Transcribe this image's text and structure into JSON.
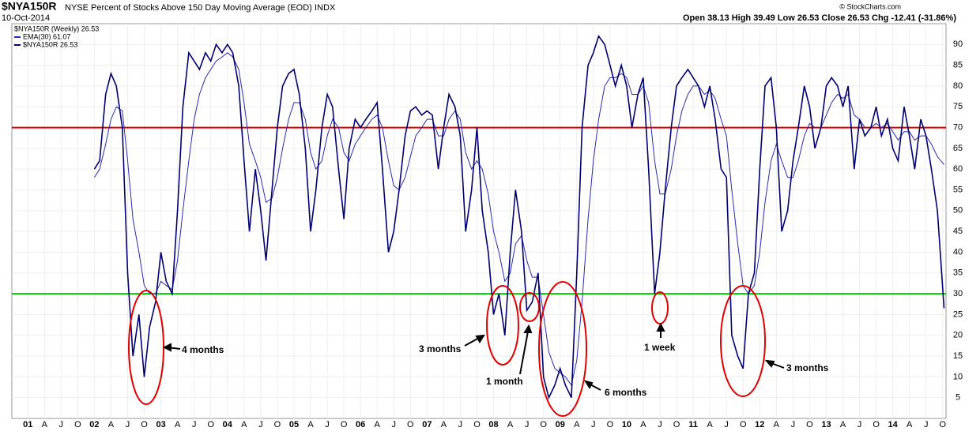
{
  "header": {
    "symbol": "$NYA150R",
    "title": "NYSE Percent of Stocks Above 150 Day Moving Average (EOD)",
    "exchange": "INDX",
    "date": "10-Oct-2014",
    "quote": "Open 38.13  High 39.49  Low 26.53  Close 26.53  Chg -12.41 (-31.86%)",
    "credit": "© StockCharts.com",
    "legend_title": "$NYA150R (Weekly) 26.53"
  },
  "chart_data": {
    "type": "line",
    "x": [
      2002.0,
      2002.08,
      2002.17,
      2002.25,
      2002.33,
      2002.42,
      2002.5,
      2002.58,
      2002.67,
      2002.75,
      2002.83,
      2002.92,
      2003.0,
      2003.08,
      2003.17,
      2003.25,
      2003.33,
      2003.42,
      2003.5,
      2003.58,
      2003.67,
      2003.75,
      2003.83,
      2003.92,
      2004.0,
      2004.08,
      2004.17,
      2004.25,
      2004.33,
      2004.42,
      2004.5,
      2004.58,
      2004.67,
      2004.75,
      2004.83,
      2004.92,
      2005.0,
      2005.08,
      2005.17,
      2005.25,
      2005.33,
      2005.42,
      2005.5,
      2005.58,
      2005.67,
      2005.75,
      2005.83,
      2005.92,
      2006.0,
      2006.08,
      2006.17,
      2006.25,
      2006.33,
      2006.42,
      2006.5,
      2006.58,
      2006.67,
      2006.75,
      2006.83,
      2006.92,
      2007.0,
      2007.08,
      2007.17,
      2007.25,
      2007.33,
      2007.42,
      2007.5,
      2007.58,
      2007.67,
      2007.75,
      2007.83,
      2007.92,
      2008.0,
      2008.08,
      2008.17,
      2008.25,
      2008.33,
      2008.42,
      2008.5,
      2008.58,
      2008.67,
      2008.75,
      2008.83,
      2008.92,
      2009.0,
      2009.08,
      2009.17,
      2009.25,
      2009.33,
      2009.42,
      2009.5,
      2009.58,
      2009.67,
      2009.75,
      2009.83,
      2009.92,
      2010.0,
      2010.08,
      2010.17,
      2010.25,
      2010.33,
      2010.42,
      2010.5,
      2010.58,
      2010.67,
      2010.75,
      2010.83,
      2010.92,
      2011.0,
      2011.08,
      2011.17,
      2011.25,
      2011.33,
      2011.42,
      2011.5,
      2011.58,
      2011.67,
      2011.75,
      2011.83,
      2011.92,
      2012.0,
      2012.08,
      2012.17,
      2012.25,
      2012.33,
      2012.42,
      2012.5,
      2012.58,
      2012.67,
      2012.75,
      2012.83,
      2012.92,
      2013.0,
      2013.08,
      2013.17,
      2013.25,
      2013.33,
      2013.42,
      2013.5,
      2013.58,
      2013.67,
      2013.75,
      2013.83,
      2013.92,
      2014.0,
      2014.08,
      2014.17,
      2014.25,
      2014.33,
      2014.42,
      2014.5,
      2014.58,
      2014.67,
      2014.77
    ],
    "series": [
      {
        "name": "EMA(30) 61.07",
        "color": "#2a2ab0",
        "width": 1,
        "values": [
          58,
          60,
          66,
          72,
          75,
          74,
          62,
          48,
          40,
          32,
          30,
          30,
          33,
          32,
          31,
          38,
          50,
          62,
          72,
          78,
          82,
          84,
          86,
          87,
          88,
          87,
          84,
          76,
          66,
          62,
          58,
          52,
          53,
          58,
          65,
          72,
          76,
          76,
          72,
          64,
          60,
          62,
          68,
          72,
          70,
          64,
          62,
          66,
          68,
          70,
          72,
          73,
          70,
          62,
          56,
          55,
          58,
          63,
          68,
          70,
          72,
          72,
          68,
          68,
          72,
          74,
          72,
          64,
          60,
          62,
          60,
          54,
          45,
          40,
          33,
          35,
          42,
          44,
          38,
          34,
          34,
          25,
          16,
          12,
          11,
          10,
          8,
          14,
          28,
          48,
          62,
          72,
          80,
          82,
          82,
          83,
          82,
          78,
          78,
          80,
          76,
          62,
          54,
          54,
          60,
          68,
          74,
          78,
          80,
          80,
          78,
          79,
          77,
          72,
          68,
          55,
          42,
          32,
          30,
          32,
          40,
          52,
          62,
          66,
          62,
          58,
          58,
          62,
          68,
          71,
          70,
          70,
          73,
          76,
          78,
          77,
          78,
          73,
          72,
          70,
          70,
          71,
          70,
          71,
          69,
          67,
          69,
          69,
          67,
          68,
          68,
          66,
          63,
          61.07
        ]
      },
      {
        "name": "$NYA150R 26.53",
        "color": "#000070",
        "width": 1.6,
        "values": [
          60,
          62,
          78,
          83,
          80,
          70,
          35,
          15,
          25,
          10,
          22,
          28,
          40,
          33,
          30,
          50,
          75,
          88,
          86,
          84,
          88,
          86,
          90,
          88,
          90,
          88,
          80,
          62,
          45,
          60,
          50,
          38,
          55,
          70,
          80,
          83,
          84,
          78,
          65,
          45,
          55,
          70,
          78,
          75,
          60,
          48,
          65,
          72,
          70,
          72,
          74,
          76,
          60,
          40,
          45,
          55,
          68,
          74,
          75,
          73,
          74,
          73,
          60,
          70,
          78,
          75,
          68,
          45,
          55,
          70,
          50,
          40,
          25,
          30,
          20,
          40,
          55,
          45,
          26,
          28,
          35,
          10,
          5,
          8,
          12,
          8,
          5,
          35,
          70,
          85,
          88,
          92,
          90,
          85,
          80,
          85,
          80,
          70,
          78,
          82,
          60,
          30,
          40,
          55,
          70,
          80,
          82,
          84,
          82,
          80,
          75,
          80,
          72,
          60,
          58,
          20,
          15,
          12,
          30,
          35,
          60,
          80,
          82,
          70,
          45,
          50,
          62,
          70,
          80,
          75,
          65,
          70,
          80,
          82,
          80,
          75,
          80,
          60,
          72,
          68,
          70,
          75,
          68,
          72,
          65,
          62,
          75,
          68,
          60,
          72,
          68,
          60,
          50,
          26.53
        ]
      }
    ],
    "reference_lines": [
      {
        "value": 70,
        "color": "#e00000"
      },
      {
        "value": 30,
        "color": "#00cc00"
      }
    ],
    "annotations": [
      "4 months",
      "3 months",
      "1 month",
      "6 months",
      "1 week",
      "3 months"
    ],
    "annotation_color": "#e00000",
    "xlim": [
      2000.76,
      2014.8
    ],
    "ylim": [
      0,
      95
    ],
    "yticks": [
      5,
      10,
      15,
      20,
      25,
      30,
      35,
      40,
      45,
      50,
      55,
      60,
      65,
      70,
      75,
      80,
      85,
      90
    ],
    "xticks": [
      {
        "value": 2001,
        "label": "01"
      },
      {
        "value": 2001.25,
        "label": "A"
      },
      {
        "value": 2001.5,
        "label": "J"
      },
      {
        "value": 2001.75,
        "label": "O"
      },
      {
        "value": 2002,
        "label": "02"
      },
      {
        "value": 2002.25,
        "label": "A"
      },
      {
        "value": 2002.5,
        "label": "J"
      },
      {
        "value": 2002.75,
        "label": "O"
      },
      {
        "value": 2003,
        "label": "03"
      },
      {
        "value": 2003.25,
        "label": "A"
      },
      {
        "value": 2003.5,
        "label": "J"
      },
      {
        "value": 2003.75,
        "label": "O"
      },
      {
        "value": 2004,
        "label": "04"
      },
      {
        "value": 2004.25,
        "label": "A"
      },
      {
        "value": 2004.5,
        "label": "J"
      },
      {
        "value": 2004.75,
        "label": "O"
      },
      {
        "value": 2005,
        "label": "05"
      },
      {
        "value": 2005.25,
        "label": "A"
      },
      {
        "value": 2005.5,
        "label": "J"
      },
      {
        "value": 2005.75,
        "label": "O"
      },
      {
        "value": 2006,
        "label": "06"
      },
      {
        "value": 2006.25,
        "label": "A"
      },
      {
        "value": 2006.5,
        "label": "J"
      },
      {
        "value": 2006.75,
        "label": "O"
      },
      {
        "value": 2007,
        "label": "07"
      },
      {
        "value": 2007.25,
        "label": "A"
      },
      {
        "value": 2007.5,
        "label": "J"
      },
      {
        "value": 2007.75,
        "label": "O"
      },
      {
        "value": 2008,
        "label": "08"
      },
      {
        "value": 2008.25,
        "label": "A"
      },
      {
        "value": 2008.5,
        "label": "J"
      },
      {
        "value": 2008.75,
        "label": "O"
      },
      {
        "value": 2009,
        "label": "09"
      },
      {
        "value": 2009.25,
        "label": "A"
      },
      {
        "value": 2009.5,
        "label": "J"
      },
      {
        "value": 2009.75,
        "label": "O"
      },
      {
        "value": 2010,
        "label": "10"
      },
      {
        "value": 2010.25,
        "label": "A"
      },
      {
        "value": 2010.5,
        "label": "J"
      },
      {
        "value": 2010.75,
        "label": "O"
      },
      {
        "value": 2011,
        "label": "11"
      },
      {
        "value": 2011.25,
        "label": "A"
      },
      {
        "value": 2011.5,
        "label": "J"
      },
      {
        "value": 2011.75,
        "label": "O"
      },
      {
        "value": 2012,
        "label": "12"
      },
      {
        "value": 2012.25,
        "label": "A"
      },
      {
        "value": 2012.5,
        "label": "J"
      },
      {
        "value": 2012.75,
        "label": "O"
      },
      {
        "value": 2013,
        "label": "13"
      },
      {
        "value": 2013.25,
        "label": "A"
      },
      {
        "value": 2013.5,
        "label": "J"
      },
      {
        "value": 2013.75,
        "label": "O"
      },
      {
        "value": 2014,
        "label": "14"
      },
      {
        "value": 2014.25,
        "label": "A"
      },
      {
        "value": 2014.5,
        "label": "J"
      },
      {
        "value": 2014.75,
        "label": "O"
      }
    ],
    "grid": true
  }
}
